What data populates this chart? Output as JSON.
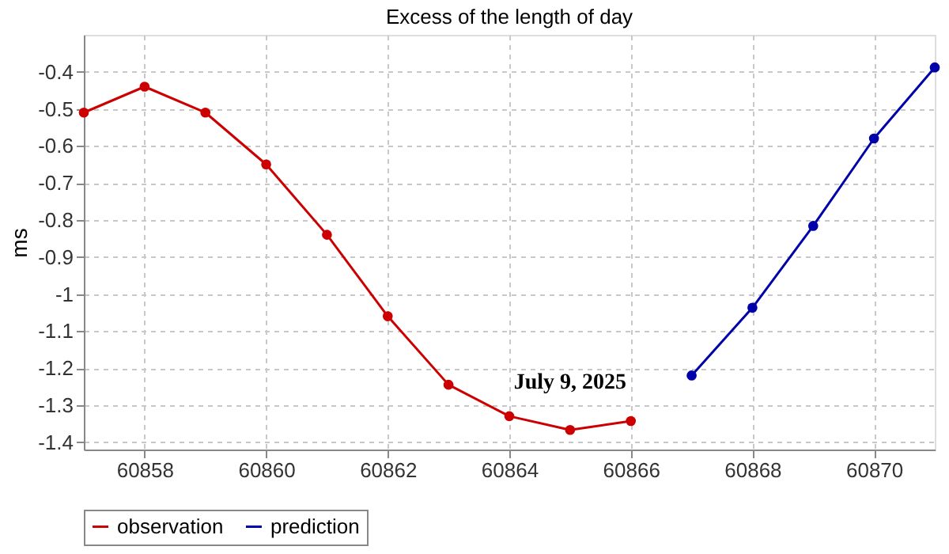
{
  "chart_data": {
    "type": "line",
    "title": "Excess of the length of day",
    "ylabel": "ms",
    "xlim": [
      60857,
      60871
    ],
    "xticks": [
      60858,
      60860,
      60862,
      60864,
      60866,
      60868,
      60870
    ],
    "ylim": [
      -1.42,
      -0.3
    ],
    "yticks": [
      -1.4,
      -1.3,
      -1.2,
      -1.1,
      -1.0,
      -0.9,
      -0.8,
      -0.7,
      -0.6,
      -0.5,
      -0.4
    ],
    "grid": true,
    "legend": "bottom",
    "marker": "circle",
    "line_style": "solid",
    "series": [
      {
        "name": "observation",
        "color": "#cc0000",
        "x": [
          60857,
          60858,
          60859,
          60860,
          60861,
          60862,
          60863,
          60864,
          60865,
          60866
        ],
        "values": [
          -0.51,
          -0.44,
          -0.51,
          -0.65,
          -0.84,
          -1.06,
          -1.245,
          -1.33,
          -1.367,
          -1.343
        ]
      },
      {
        "name": "prediction",
        "color": "#0000aa",
        "x": [
          60867,
          60868,
          60869,
          60870,
          60871
        ],
        "values": [
          -1.22,
          -1.037,
          -0.816,
          -0.58,
          -0.388
        ]
      }
    ],
    "annotations": [
      {
        "text": "July 9, 2025",
        "x": 60865,
        "y": -1.367
      }
    ]
  }
}
